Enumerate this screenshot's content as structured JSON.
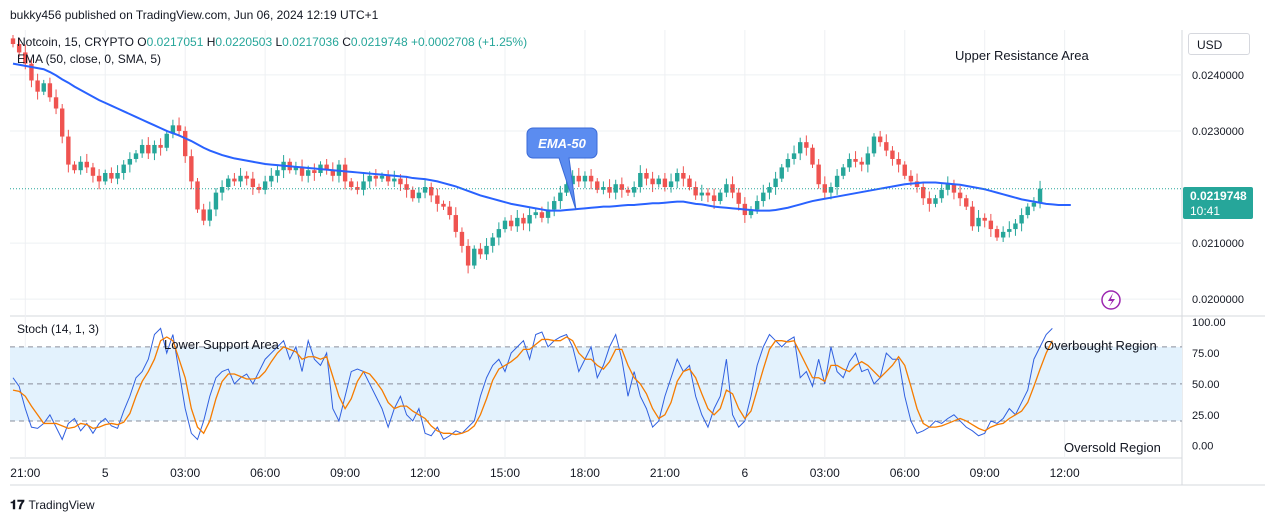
{
  "header": {
    "published": "bukky456 published on TradingView.com, Jun 06, 2024 12:19 UTC+1",
    "symbol": "Notcoin, 15, CRYPTO",
    "o_label": "O",
    "o": "0.0217051",
    "h_label": "H",
    "h": "0.0220503",
    "l_label": "L",
    "l": "0.0217036",
    "c_label": "C",
    "c": "0.0219748",
    "change": "+0.0002708 (+1.25%)",
    "ema_label": "EMA (50, close, 0, SMA, 5)",
    "stoch_label": "Stoch (14, 1, 3)"
  },
  "currency": "USD",
  "price_tag": {
    "price": "0.0219748",
    "countdown": "10:41"
  },
  "brand": "TradingView",
  "colors": {
    "up": "#26a69a",
    "down": "#ef5350",
    "ema": "#2962ff",
    "stoch_k": "#3060e0",
    "stoch_d": "#f57c00",
    "band": "#e3f2fd",
    "price_line": "#26a69a"
  },
  "chart_data": [
    {
      "type": "candlestick",
      "series_names": [
        "Notcoin, 15, CRYPTO",
        "EMA (50, close, 0, SMA, 5)"
      ],
      "ylim": [
        0.0197,
        0.0248
      ],
      "y_ticks": [
        "0.0240000",
        "0.0230000",
        "0.0210000",
        "0.0200000"
      ],
      "y_tick_values": [
        0.024,
        0.023,
        0.021,
        0.02
      ],
      "x_tick_labels": [
        "21:00",
        "5",
        "03:00",
        "06:00",
        "09:00",
        "12:00",
        "15:00",
        "18:00",
        "21:00",
        "6",
        "03:00",
        "06:00",
        "09:00",
        "12:00"
      ],
      "x_tick_candle_index": [
        2,
        15,
        28,
        41,
        54,
        67,
        80,
        93,
        106,
        119,
        132,
        145,
        158,
        171
      ],
      "closes": [
        0.02455,
        0.0244,
        0.0242,
        0.0239,
        0.0237,
        0.02385,
        0.0236,
        0.0234,
        0.0229,
        0.0224,
        0.0223,
        0.02245,
        0.02235,
        0.0222,
        0.0221,
        0.02225,
        0.02215,
        0.02225,
        0.0224,
        0.0225,
        0.0226,
        0.02275,
        0.0226,
        0.02275,
        0.0227,
        0.02295,
        0.0231,
        0.023,
        0.02255,
        0.0221,
        0.0216,
        0.0214,
        0.0216,
        0.0219,
        0.022,
        0.02215,
        0.0221,
        0.0222,
        0.02215,
        0.022,
        0.02195,
        0.0221,
        0.0222,
        0.0223,
        0.02245,
        0.0223,
        0.02235,
        0.0222,
        0.0223,
        0.02225,
        0.0224,
        0.0223,
        0.0222,
        0.0224,
        0.0221,
        0.022,
        0.02195,
        0.0221,
        0.0222,
        0.02215,
        0.0222,
        0.0221,
        0.02215,
        0.02205,
        0.02195,
        0.0218,
        0.0219,
        0.022,
        0.02185,
        0.0217,
        0.02165,
        0.0215,
        0.0212,
        0.02095,
        0.0206,
        0.0209,
        0.0208,
        0.02095,
        0.0211,
        0.02125,
        0.0214,
        0.0213,
        0.02145,
        0.02135,
        0.0215,
        0.02155,
        0.02145,
        0.0216,
        0.02175,
        0.0219,
        0.02205,
        0.0222,
        0.0221,
        0.0222,
        0.0221,
        0.02195,
        0.022,
        0.0219,
        0.02205,
        0.02195,
        0.0219,
        0.022,
        0.02225,
        0.02215,
        0.02205,
        0.02215,
        0.022,
        0.0221,
        0.02225,
        0.02215,
        0.022,
        0.02185,
        0.0219,
        0.02185,
        0.02175,
        0.0219,
        0.02205,
        0.0219,
        0.0217,
        0.0215,
        0.0216,
        0.02175,
        0.0219,
        0.022,
        0.02215,
        0.02235,
        0.0225,
        0.0226,
        0.0228,
        0.0227,
        0.0224,
        0.02205,
        0.0219,
        0.022,
        0.0222,
        0.02235,
        0.0225,
        0.02245,
        0.0224,
        0.0226,
        0.0229,
        0.0228,
        0.02265,
        0.0225,
        0.0224,
        0.0222,
        0.0221,
        0.022,
        0.0218,
        0.0217,
        0.0218,
        0.02195,
        0.02205,
        0.0219,
        0.0218,
        0.02165,
        0.0213,
        0.02145,
        0.0214,
        0.02125,
        0.0211,
        0.0212,
        0.02125,
        0.02135,
        0.0215,
        0.02165,
        0.02172,
        0.02197
      ],
      "ema": [
        0.0242,
        0.02418,
        0.02416,
        0.02414,
        0.02412,
        0.0241,
        0.02405,
        0.02399,
        0.02392,
        0.02386,
        0.02379,
        0.02373,
        0.02367,
        0.02361,
        0.02355,
        0.0235,
        0.02345,
        0.0234,
        0.02335,
        0.0233,
        0.02325,
        0.0232,
        0.02315,
        0.0231,
        0.02305,
        0.023,
        0.02296,
        0.02292,
        0.02287,
        0.02282,
        0.02276,
        0.0227,
        0.02265,
        0.02261,
        0.02257,
        0.02254,
        0.02251,
        0.02249,
        0.02247,
        0.02245,
        0.02243,
        0.02241,
        0.0224,
        0.02239,
        0.02238,
        0.02237,
        0.02236,
        0.02235,
        0.02234,
        0.02233,
        0.02232,
        0.02231,
        0.0223,
        0.02229,
        0.02228,
        0.02227,
        0.02226,
        0.02225,
        0.02224,
        0.02223,
        0.02222,
        0.02221,
        0.0222,
        0.02219,
        0.02218,
        0.02216,
        0.02215,
        0.02214,
        0.02212,
        0.0221,
        0.02207,
        0.02204,
        0.02201,
        0.02197,
        0.02193,
        0.02189,
        0.02185,
        0.02182,
        0.02179,
        0.02176,
        0.02173,
        0.0217,
        0.02168,
        0.02166,
        0.02164,
        0.02162,
        0.0216,
        0.02158,
        0.02158,
        0.02158,
        0.02159,
        0.0216,
        0.02161,
        0.02162,
        0.02163,
        0.02164,
        0.02165,
        0.02165,
        0.02166,
        0.02167,
        0.02168,
        0.02168,
        0.02169,
        0.0217,
        0.02171,
        0.02171,
        0.02172,
        0.02173,
        0.02174,
        0.02174,
        0.02172,
        0.0217,
        0.02169,
        0.02167,
        0.02165,
        0.02164,
        0.02163,
        0.02162,
        0.02161,
        0.0216,
        0.02159,
        0.02158,
        0.02158,
        0.02158,
        0.02159,
        0.02161,
        0.02163,
        0.02166,
        0.02169,
        0.02172,
        0.02175,
        0.02177,
        0.02179,
        0.02181,
        0.02183,
        0.02185,
        0.02187,
        0.02189,
        0.02191,
        0.02193,
        0.02195,
        0.02197,
        0.02199,
        0.02201,
        0.02203,
        0.02205,
        0.02206,
        0.02207,
        0.02208,
        0.02208,
        0.02208,
        0.02207,
        0.02206,
        0.02205,
        0.02204,
        0.02202,
        0.022,
        0.02198,
        0.02196,
        0.02193,
        0.0219,
        0.02187,
        0.02184,
        0.02181,
        0.02178,
        0.02176,
        0.02174,
        0.02172,
        0.0217,
        0.02169,
        0.02168,
        0.02168,
        0.02168
      ]
    },
    {
      "type": "line",
      "series_names": [
        "Stoch (14, 1, 3)"
      ],
      "ylim": [
        -10,
        105
      ],
      "y_ticks": [
        "100.00",
        "75.00",
        "50.00",
        "25.00",
        "0.00"
      ],
      "y_tick_values": [
        100,
        75,
        50,
        25,
        0
      ],
      "bands": {
        "upper": 80,
        "middle": 50,
        "lower": 20
      },
      "k": [
        55,
        48,
        30,
        15,
        14,
        18,
        25,
        15,
        5,
        18,
        22,
        12,
        18,
        10,
        18,
        22,
        16,
        14,
        28,
        40,
        55,
        60,
        70,
        90,
        95,
        75,
        90,
        60,
        30,
        10,
        5,
        20,
        40,
        55,
        60,
        62,
        50,
        55,
        58,
        50,
        60,
        70,
        75,
        80,
        85,
        70,
        80,
        60,
        85,
        70,
        65,
        75,
        30,
        20,
        40,
        60,
        62,
        60,
        50,
        40,
        30,
        15,
        30,
        40,
        25,
        20,
        30,
        10,
        8,
        15,
        5,
        8,
        12,
        10,
        15,
        20,
        40,
        55,
        65,
        70,
        60,
        75,
        80,
        85,
        70,
        90,
        92,
        80,
        85,
        88,
        90,
        80,
        60,
        70,
        80,
        55,
        65,
        80,
        90,
        70,
        40,
        60,
        40,
        30,
        15,
        20,
        40,
        55,
        70,
        60,
        65,
        40,
        25,
        15,
        30,
        40,
        70,
        25,
        15,
        20,
        40,
        65,
        80,
        90,
        85,
        80,
        85,
        88,
        55,
        60,
        48,
        70,
        50,
        80,
        60,
        55,
        68,
        75,
        60,
        62,
        50,
        55,
        75,
        70,
        70,
        40,
        20,
        10,
        12,
        15,
        20,
        18,
        22,
        25,
        20,
        15,
        12,
        8,
        10,
        20,
        18,
        22,
        30,
        25,
        35,
        45,
        70,
        80,
        90,
        95
      ],
      "d": [
        45,
        44,
        40,
        32,
        25,
        18,
        18,
        18,
        16,
        14,
        15,
        18,
        17,
        14,
        15,
        17,
        18,
        17,
        19,
        26,
        40,
        52,
        60,
        70,
        85,
        88,
        85,
        70,
        55,
        30,
        15,
        10,
        20,
        38,
        52,
        58,
        58,
        56,
        54,
        54,
        55,
        60,
        68,
        75,
        80,
        78,
        76,
        70,
        72,
        72,
        70,
        72,
        56,
        40,
        30,
        38,
        52,
        60,
        58,
        52,
        45,
        35,
        30,
        32,
        32,
        28,
        25,
        22,
        16,
        12,
        10,
        10,
        9,
        10,
        12,
        16,
        25,
        38,
        53,
        62,
        65,
        68,
        72,
        78,
        78,
        82,
        86,
        86,
        85,
        85,
        88,
        85,
        75,
        70,
        70,
        65,
        62,
        68,
        78,
        78,
        65,
        55,
        50,
        42,
        30,
        22,
        25,
        35,
        52,
        60,
        62,
        55,
        42,
        30,
        25,
        30,
        45,
        42,
        30,
        22,
        28,
        45,
        62,
        78,
        85,
        85,
        84,
        85,
        75,
        65,
        55,
        55,
        52,
        65,
        65,
        62,
        60,
        65,
        68,
        65,
        60,
        55,
        60,
        65,
        72,
        65,
        48,
        30,
        18,
        15,
        15,
        16,
        18,
        20,
        22,
        20,
        17,
        14,
        12,
        15,
        17,
        18,
        22,
        25,
        28,
        35,
        48,
        62,
        75,
        85
      ]
    }
  ],
  "annotations": {
    "ema_callout": "EMA-50",
    "upper_resistance": "Upper Resistance Area",
    "lower_support": "Lower Support Area",
    "overbought": "Overbought Region",
    "oversold": "Oversold Region"
  },
  "icons": {
    "lightning": "lightning-icon",
    "logo": "tradingview-logo-icon"
  }
}
